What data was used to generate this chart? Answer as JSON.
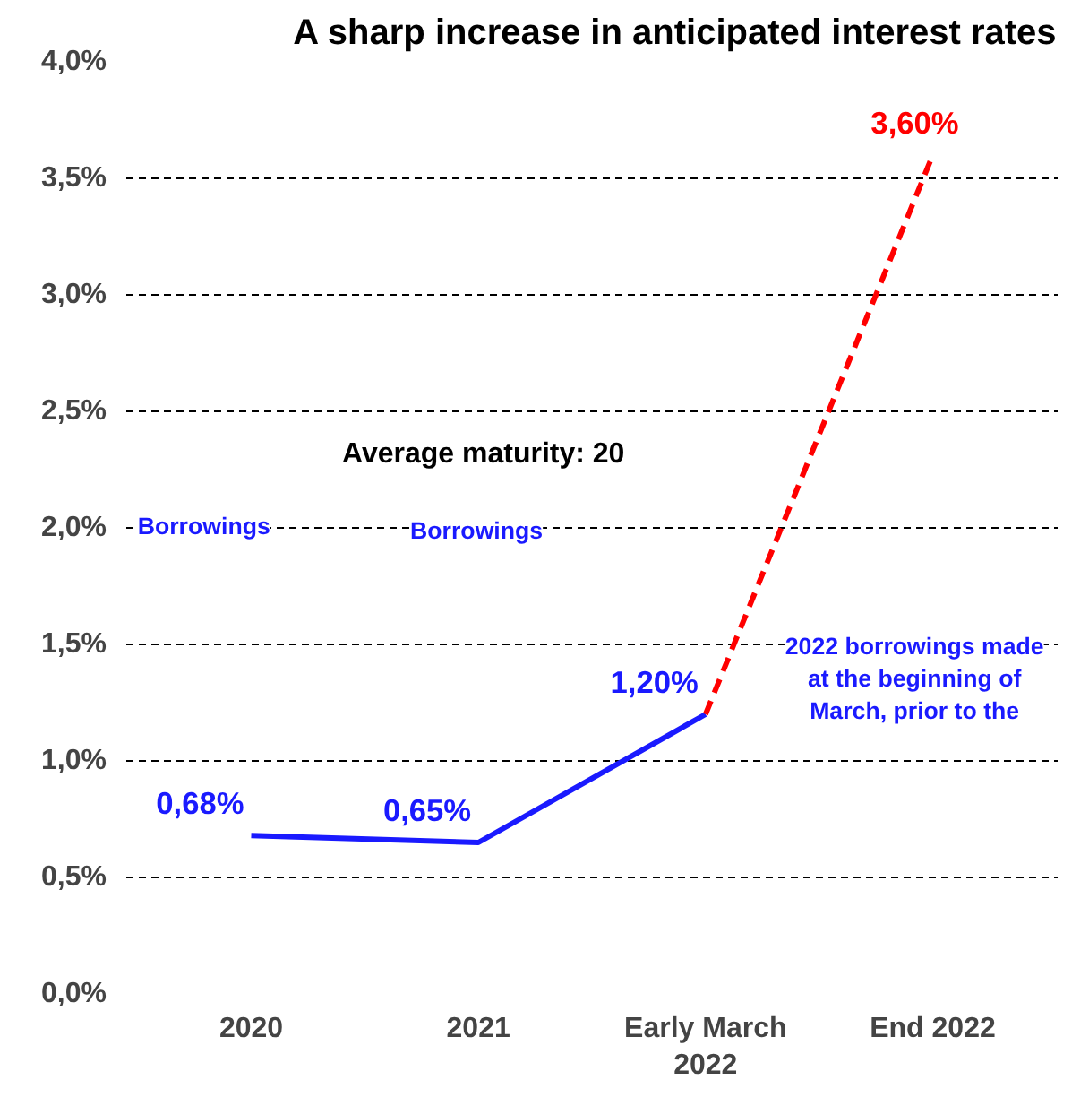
{
  "chart_data": {
    "type": "line",
    "title": "A sharp increase in anticipated interest rates",
    "categories": [
      "2020",
      "2021",
      "Early March\n2022",
      "End 2022"
    ],
    "series": [
      {
        "color": "#1a1aff",
        "values": [
          0.68,
          0.65,
          1.2,
          null
        ],
        "line_style": "solid",
        "value_labels": [
          "0,68%",
          "0,65%",
          "1,20%",
          null
        ]
      },
      {
        "color": "#ff0000",
        "values": [
          null,
          null,
          1.2,
          3.6
        ],
        "line_style": "dashed",
        "value_labels": [
          null,
          null,
          null,
          "3,60%"
        ]
      }
    ],
    "ylim": [
      0,
      4.0
    ],
    "yticks": [
      {
        "value": 0,
        "label": "0,0%"
      },
      {
        "value": 0.5,
        "label": "0,5%"
      },
      {
        "value": 1.0,
        "label": "1,0%"
      },
      {
        "value": 1.5,
        "label": "1,5%"
      },
      {
        "value": 2.0,
        "label": "2,0%"
      },
      {
        "value": 2.5,
        "label": "2,5%"
      },
      {
        "value": 3.0,
        "label": "3,0%"
      },
      {
        "value": 3.5,
        "label": "3,5%"
      },
      {
        "value": 4.0,
        "label": "4,0%"
      }
    ],
    "grid": "y",
    "marker": "none",
    "annotations": [
      "Average maturity: 20",
      "Borrowings",
      "Borrowings",
      "2022 borrowings made\nat the beginning of\nMarch, prior to the"
    ]
  }
}
